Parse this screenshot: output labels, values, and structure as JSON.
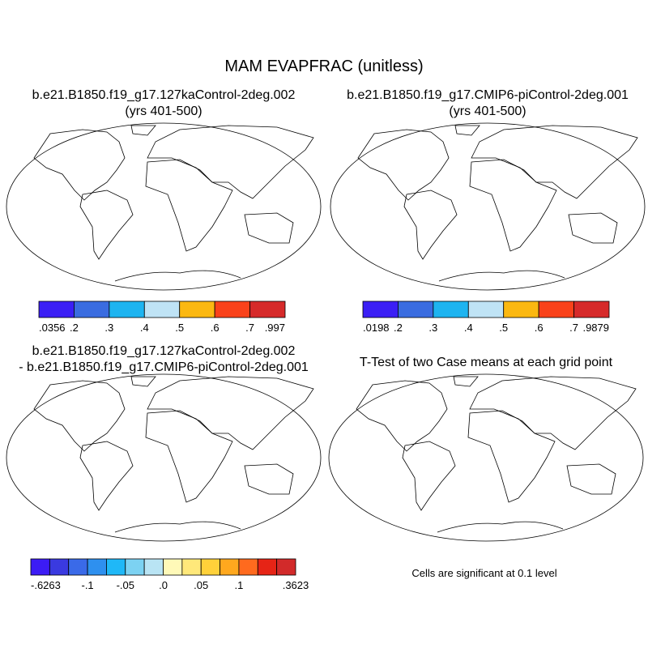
{
  "title": "MAM EVAPFRAC (unitless)",
  "panels": [
    {
      "title_lines": [
        "b.e21.B1850.f19_g17.127kaControl-2deg.002",
        "(yrs 401-500)"
      ],
      "colorbar": {
        "colors": [
          "#3b1ff5",
          "#3a6ce0",
          "#1eb4f0",
          "#bfe3f5",
          "#fbb811",
          "#f9421a",
          "#d62a2a"
        ],
        "labels": [
          ".0356",
          ".2",
          ".3",
          ".4",
          ".5",
          ".6",
          ".7",
          ".997"
        ]
      }
    },
    {
      "title_lines": [
        "b.e21.B1850.f19_g17.CMIP6-piControl-2deg.001",
        "(yrs 401-500)"
      ],
      "colorbar": {
        "colors": [
          "#3b1ff5",
          "#3a6ce0",
          "#1eb4f0",
          "#bfe3f5",
          "#fbb811",
          "#f9421a",
          "#d62a2a"
        ],
        "labels": [
          ".0198",
          ".2",
          ".3",
          ".4",
          ".5",
          ".6",
          ".7",
          ".9879"
        ]
      }
    },
    {
      "title_lines": [
        "b.e21.B1850.f19_g17.127kaControl-2deg.002",
        "- b.e21.B1850.f19_g17.CMIP6-piControl-2deg.001"
      ],
      "colorbar": {
        "colors": [
          "#3c1cf5",
          "#3a3ae0",
          "#3a6ae8",
          "#2e90ef",
          "#1fb8f7",
          "#7cd2f2",
          "#b9e4f4",
          "#fff9b8",
          "#ffe87a",
          "#ffd13a",
          "#ffa81e",
          "#ff6a1e",
          "#e62416",
          "#d22a2a"
        ],
        "labels": [
          "-.6263",
          "-.1",
          "-.05",
          ".0",
          ".05",
          ".1",
          ".3623"
        ]
      }
    },
    {
      "title_lines": [
        "T-Test of two Case means at each grid point"
      ],
      "note": "Cells are significant at 0.1 level"
    }
  ]
}
